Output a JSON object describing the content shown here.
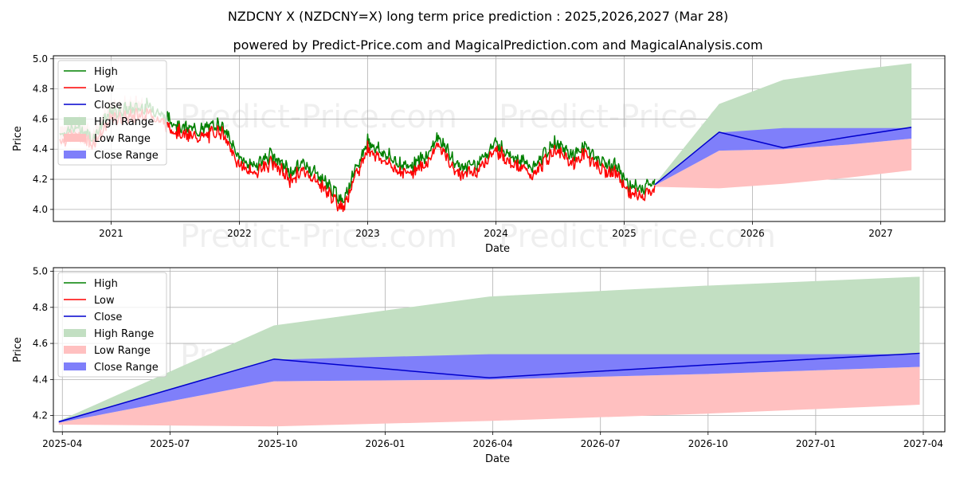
{
  "title": "NZDCNY X (NZDCNY=X) long term price prediction : 2025,2026,2027 (Mar 28)",
  "subtitle": "powered by Predict-Price.com and MagicalPrediction.com and MagicalAnalysis.com",
  "watermark": "Predict-Price.com",
  "colors": {
    "high": "#008000",
    "low": "#ff0000",
    "close": "#0000cd",
    "high_range": "#c2dfc2",
    "low_range": "#ffc0c0",
    "close_range": "#7f7ffa",
    "grid": "#b0b0b0"
  },
  "legend": [
    {
      "key": "high",
      "label": "High",
      "kind": "line"
    },
    {
      "key": "low",
      "label": "Low",
      "kind": "line"
    },
    {
      "key": "close",
      "label": "Close",
      "kind": "line"
    },
    {
      "key": "high_range",
      "label": "High Range",
      "kind": "patch"
    },
    {
      "key": "low_range",
      "label": "Low Range",
      "kind": "patch"
    },
    {
      "key": "close_range",
      "label": "Close Range",
      "kind": "patch"
    }
  ],
  "chart_data": [
    {
      "type": "line",
      "id": "top",
      "xlabel": "Date",
      "ylabel": "Price",
      "xlim": [
        2020.55,
        2027.5
      ],
      "ylim": [
        3.92,
        5.02
      ],
      "xticks": [
        2021,
        2022,
        2023,
        2024,
        2025,
        2026,
        2027
      ],
      "xtick_labels": [
        "2021",
        "2022",
        "2023",
        "2024",
        "2025",
        "2026",
        "2027"
      ],
      "yticks": [
        4.0,
        4.2,
        4.4,
        4.6,
        4.8,
        5.0
      ],
      "ytick_labels": [
        "4.0",
        "4.2",
        "4.4",
        "4.6",
        "4.8",
        "5.0"
      ],
      "legend_position": "upper-left",
      "history_anchors_x": [
        2020.6,
        2020.75,
        2020.85,
        2021.0,
        2021.15,
        2021.3,
        2021.4,
        2021.55,
        2021.7,
        2021.85,
        2022.0,
        2022.1,
        2022.25,
        2022.4,
        2022.5,
        2022.65,
        2022.8,
        2022.92,
        2023.0,
        2023.15,
        2023.3,
        2023.45,
        2023.55,
        2023.7,
        2023.85,
        2024.0,
        2024.15,
        2024.3,
        2024.45,
        2024.6,
        2024.7,
        2024.8,
        2024.95,
        2025.05,
        2025.15,
        2025.24
      ],
      "history_anchors_close": [
        4.48,
        4.52,
        4.45,
        4.62,
        4.64,
        4.66,
        4.6,
        4.52,
        4.5,
        4.55,
        4.32,
        4.26,
        4.34,
        4.22,
        4.28,
        4.18,
        4.03,
        4.26,
        4.43,
        4.33,
        4.26,
        4.32,
        4.46,
        4.26,
        4.28,
        4.42,
        4.32,
        4.25,
        4.42,
        4.33,
        4.4,
        4.3,
        4.25,
        4.12,
        4.12,
        4.16
      ],
      "forecast_x": [
        2025.24,
        2025.74,
        2026.24,
        2026.74,
        2027.24
      ],
      "forecast_high_range_upper": [
        4.17,
        4.7,
        4.86,
        4.92,
        4.97
      ],
      "forecast_high_range_lower": [
        4.16,
        4.5,
        4.52,
        4.52,
        4.52
      ],
      "forecast_low_range_upper": [
        4.16,
        4.39,
        4.4,
        4.43,
        4.47
      ],
      "forecast_low_range_lower": [
        4.15,
        4.14,
        4.17,
        4.21,
        4.26
      ],
      "forecast_close_range_upper": [
        4.17,
        4.51,
        4.54,
        4.54,
        4.54
      ],
      "forecast_close_range_lower": [
        4.16,
        4.39,
        4.4,
        4.43,
        4.47
      ],
      "forecast_close": [
        4.165,
        4.513,
        4.409,
        4.48,
        4.545
      ]
    },
    {
      "type": "line",
      "id": "bottom",
      "xlabel": "Date",
      "ylabel": "Price",
      "xlim": [
        -0.25,
        24.6
      ],
      "ylim": [
        4.11,
        5.02
      ],
      "xticks": [
        0,
        3,
        6,
        9,
        12,
        15,
        18,
        21,
        24
      ],
      "xtick_labels": [
        "2025-04",
        "2025-07",
        "2025-10",
        "2026-01",
        "2026-04",
        "2026-07",
        "2026-10",
        "2027-01",
        "2027-04"
      ],
      "yticks": [
        4.2,
        4.4,
        4.6,
        4.8,
        5.0
      ],
      "ytick_labels": [
        "4.2",
        "4.4",
        "4.6",
        "4.8",
        "5.0"
      ],
      "legend_position": "upper-left",
      "x": [
        -0.1,
        5.9,
        11.9,
        17.9,
        23.9
      ],
      "high_range_upper": [
        4.17,
        4.7,
        4.86,
        4.92,
        4.97
      ],
      "high_range_lower": [
        4.16,
        4.5,
        4.52,
        4.52,
        4.52
      ],
      "low_range_upper": [
        4.16,
        4.39,
        4.4,
        4.43,
        4.47
      ],
      "low_range_lower": [
        4.15,
        4.14,
        4.17,
        4.21,
        4.26
      ],
      "close_range_upper": [
        4.17,
        4.51,
        4.54,
        4.54,
        4.54
      ],
      "close_range_lower": [
        4.16,
        4.39,
        4.4,
        4.43,
        4.47
      ],
      "close": [
        4.165,
        4.513,
        4.409,
        4.48,
        4.545
      ]
    }
  ]
}
